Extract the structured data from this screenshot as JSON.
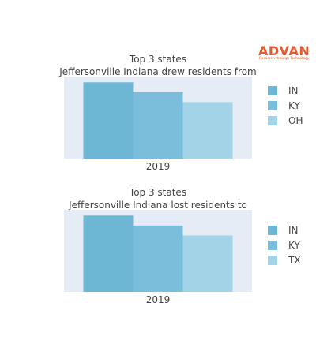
{
  "brand": {
    "name": "ADVAN",
    "tagline": "Research through Technology",
    "color": "#e8582c"
  },
  "chart_data": [
    {
      "type": "bar",
      "title": "Top 3 states",
      "subtitle": "Jeffersonville Indiana drew residents from",
      "categories": [
        "2019"
      ],
      "series": [
        {
          "name": "IN",
          "values": [
            100
          ],
          "color": "#6db7d5"
        },
        {
          "name": "KY",
          "values": [
            87
          ],
          "color": "#7abedb"
        },
        {
          "name": "OH",
          "values": [
            74
          ],
          "color": "#a3d3e6"
        }
      ],
      "ylim": [
        0,
        100
      ],
      "legend": "right",
      "grid": false
    },
    {
      "type": "bar",
      "title": "Top 3 states",
      "subtitle": "Jeffersonville Indiana lost residents to",
      "categories": [
        "2019"
      ],
      "series": [
        {
          "name": "IN",
          "values": [
            100
          ],
          "color": "#6db7d5"
        },
        {
          "name": "KY",
          "values": [
            87
          ],
          "color": "#7abedb"
        },
        {
          "name": "TX",
          "values": [
            74
          ],
          "color": "#a3d3e6"
        }
      ],
      "ylim": [
        0,
        100
      ],
      "legend": "right",
      "grid": false
    }
  ]
}
